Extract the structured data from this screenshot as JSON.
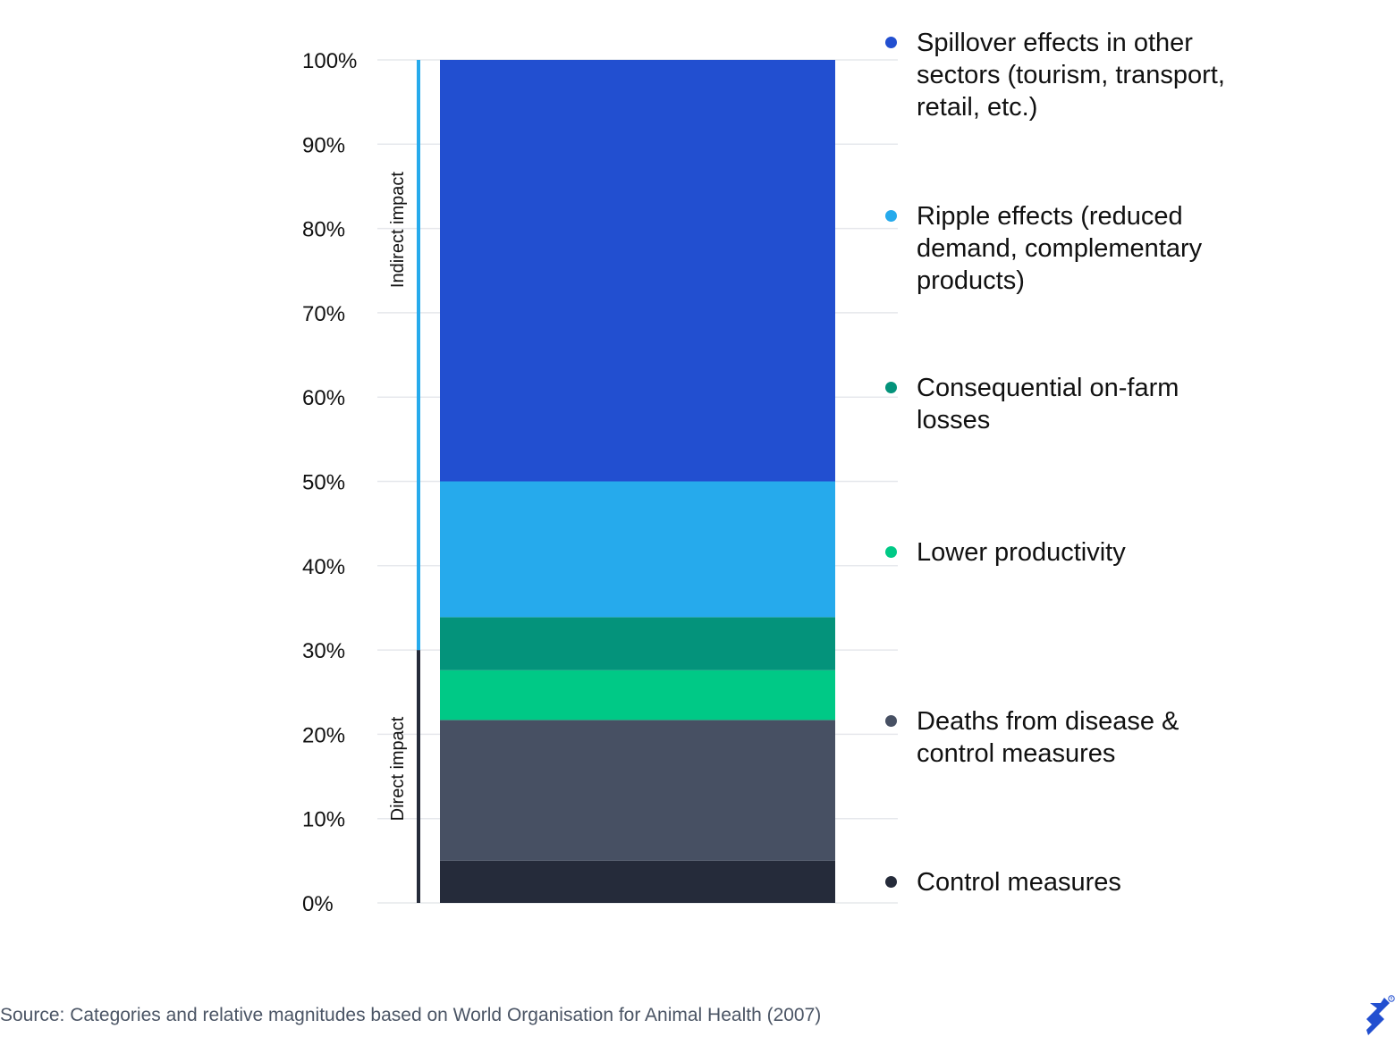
{
  "chart_data": {
    "type": "bar",
    "stacked": true,
    "title": "",
    "xlabel": "",
    "ylabel": "",
    "ylim": [
      0,
      100
    ],
    "yticks": [
      "0%",
      "10%",
      "20%",
      "30%",
      "40%",
      "50%",
      "60%",
      "70%",
      "80%",
      "90%",
      "100%"
    ],
    "grid": true,
    "legend_position": "right",
    "series": [
      {
        "name": "Control measures",
        "value": 5,
        "color": "#252b3a"
      },
      {
        "name": "Deaths from disease & control measures",
        "value": 16.7,
        "color": "#475063"
      },
      {
        "name": "Lower productivity",
        "value": 5.9,
        "color": "#00c986"
      },
      {
        "name": "Consequential on-farm losses",
        "value": 6.3,
        "color": "#04937b"
      },
      {
        "name": "Ripple effects (reduced demand, complementary products)",
        "value": 16.1,
        "color": "#26aaec"
      },
      {
        "name": "Spillover effects in other sectors (tourism, transport, retail, etc.)",
        "value": 50,
        "color": "#224fd0"
      }
    ],
    "brackets": [
      {
        "label": "Direct impact",
        "from": 0,
        "to": 30,
        "color": "#252b3a"
      },
      {
        "label": "Indirect impact",
        "from": 30,
        "to": 100,
        "color": "#26aaec"
      }
    ]
  },
  "source": "Source: Categories and relative magnitudes based on World Organisation for Animal Health (2007)",
  "logo_icon": "toptal-logo-icon"
}
